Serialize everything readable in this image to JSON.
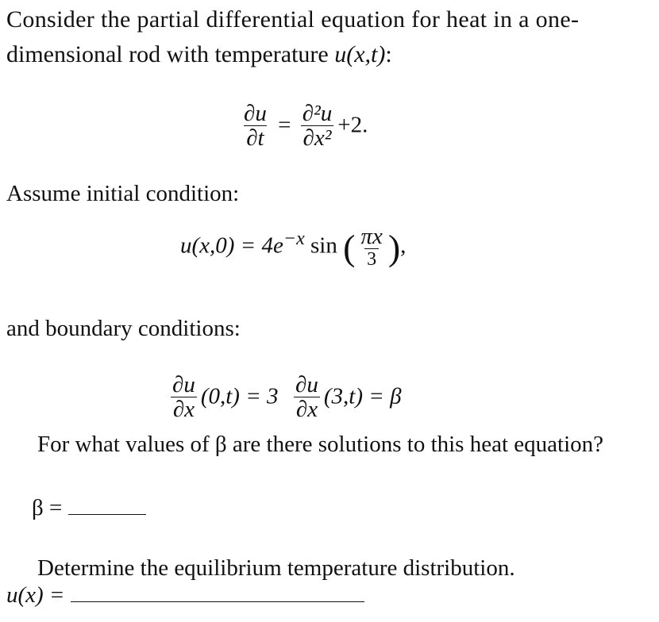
{
  "intro_line1": "Consider the partial differential equation for heat in a one-",
  "intro_line2": "dimensional rod with temperature ",
  "intro_var": "u(x,t)",
  "intro_colon": ":",
  "pde": {
    "lhs_num": "∂u",
    "lhs_den": "∂t",
    "eq": "=",
    "rhs_num": "∂²u",
    "rhs_den": "∂x²",
    "rhs_tail": "+2."
  },
  "initial_label": "Assume initial condition:",
  "initial": {
    "lhs": "u(x,0) = 4e",
    "exp": "−x",
    "fn": " sin",
    "num": "πx",
    "den": "3",
    "tail": ","
  },
  "boundary_label": "and boundary conditions:",
  "bc": {
    "num": "∂u",
    "den": "∂x",
    "left_arg": "(0,t) = 3",
    "right_arg": "(3,t) = β"
  },
  "question1": "For what values of β are there solutions to this heat equation?",
  "answer1_label": "β =",
  "question2": "Determine the equilibrium temperature distribution.",
  "answer2_label": "u(x) ="
}
